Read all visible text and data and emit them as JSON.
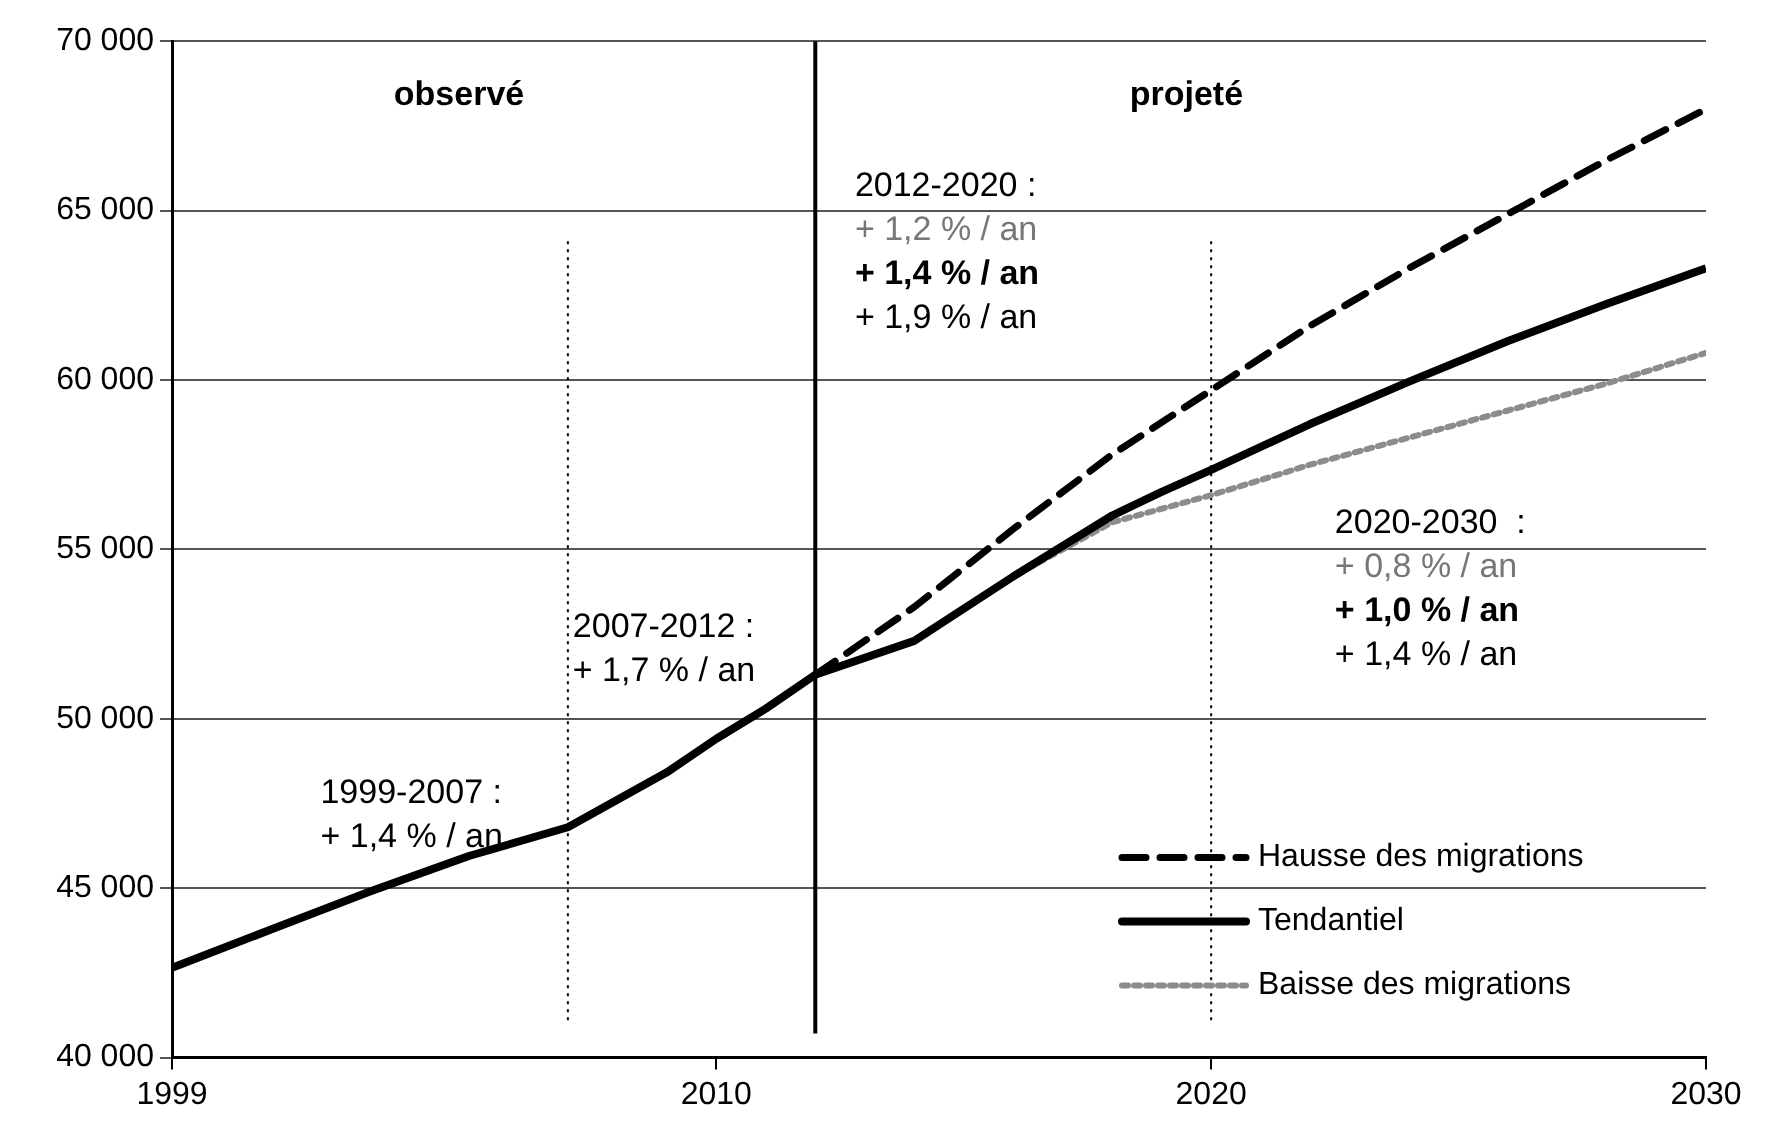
{
  "chart_data": {
    "type": "line",
    "xlim": [
      1999,
      2030
    ],
    "xticks": [
      1999,
      2010,
      2020,
      2030
    ],
    "ylim": [
      40000,
      70000
    ],
    "yticks": [
      {
        "value": 40000,
        "label": "40 000"
      },
      {
        "value": 45000,
        "label": "45 000"
      },
      {
        "value": 50000,
        "label": "50 000"
      },
      {
        "value": 55000,
        "label": "55 000"
      },
      {
        "value": 60000,
        "label": "60 000"
      },
      {
        "value": 65000,
        "label": "65 000"
      },
      {
        "value": 70000,
        "label": "70 000"
      }
    ],
    "grid": "y",
    "legend": "bottom right",
    "marker": "none",
    "series": [
      {
        "name": "Hausse des migrations",
        "color": "#000000",
        "line_style": "dashed",
        "x": [
          2012,
          2014,
          2016,
          2018,
          2020,
          2022,
          2024,
          2026,
          2028,
          2030
        ],
        "values": [
          51300,
          53300,
          55600,
          57800,
          59700,
          61600,
          63300,
          64900,
          66500,
          68000
        ]
      },
      {
        "name": "Tendantiel",
        "color": "#000000",
        "line_style": "solid",
        "x": [
          1999,
          2001,
          2003,
          2005,
          2007,
          2009,
          2010,
          2011,
          2012,
          2014,
          2016,
          2018,
          2019,
          2020,
          2022,
          2024,
          2026,
          2028,
          2030
        ],
        "values": [
          42650,
          43780,
          44900,
          45950,
          46800,
          48420,
          49410,
          50300,
          51300,
          52300,
          54200,
          56000,
          56700,
          57350,
          58700,
          59950,
          61150,
          62250,
          63300
        ]
      },
      {
        "name": "Baisse des migrations",
        "color": "#8c8c8c",
        "line_style": "dotted",
        "x": [
          2012,
          2014,
          2016,
          2018,
          2020,
          2022,
          2024,
          2026,
          2028,
          2030
        ],
        "values": [
          51300,
          52300,
          54200,
          55800,
          56600,
          57500,
          58300,
          59100,
          59900,
          60800
        ]
      }
    ],
    "ref_lines": [
      {
        "axis": "x",
        "value": 2007,
        "line_style": "dotted"
      },
      {
        "axis": "x",
        "value": 2012,
        "line_style": "solid"
      },
      {
        "axis": "x",
        "value": 2020,
        "line_style": "dotted"
      }
    ],
    "annotations": [
      "observé",
      "projeté",
      "1999-2007 :\n+ 1,4 % / an",
      "2007-2012 :\n+ 1,7 % / an",
      "2012-2020 :\n+ 1,2 % / an\n+ 1,4 % / an\n+ 1,9 % / an",
      "2020-2030  :\n+ 0,8 % / an\n+ 1,0 % / an\n+ 1,4 % / an"
    ]
  }
}
